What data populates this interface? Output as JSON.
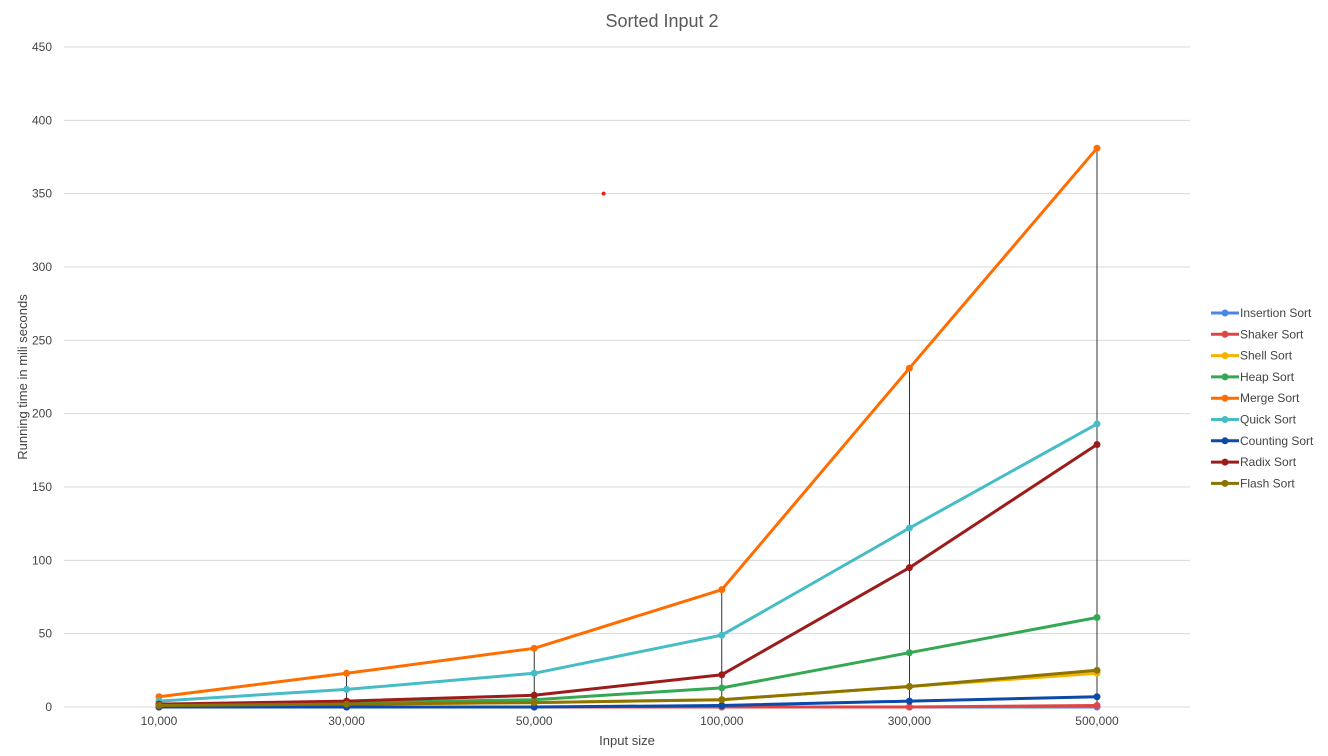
{
  "chart_data": {
    "type": "line",
    "title": "Sorted Input 2",
    "xlabel": "Input size",
    "ylabel": "Running time in mili seconds",
    "categories": [
      "10,000",
      "30,000",
      "50,000",
      "100,000",
      "300,000",
      "500,000"
    ],
    "ylim": [
      0,
      450
    ],
    "yticks": [
      0,
      50,
      100,
      150,
      200,
      250,
      300,
      350,
      400,
      450
    ],
    "grid": true,
    "legend_position": "right",
    "series": [
      {
        "name": "Insertion Sort",
        "color": "#4a86e8",
        "values": [
          0,
          0,
          0,
          0,
          0,
          0
        ]
      },
      {
        "name": "Shaker Sort",
        "color": "#e04545",
        "values": [
          0,
          0,
          0,
          0,
          0,
          1
        ]
      },
      {
        "name": "Shell Sort",
        "color": "#f4b400",
        "values": [
          1,
          2,
          3,
          5,
          14,
          23
        ]
      },
      {
        "name": "Heap Sort",
        "color": "#34a853",
        "values": [
          1,
          3,
          5,
          13,
          37,
          61
        ]
      },
      {
        "name": "Merge Sort",
        "color": "#ff6d01",
        "values": [
          7,
          23,
          40,
          80,
          231,
          381
        ]
      },
      {
        "name": "Quick Sort",
        "color": "#46bdc6",
        "values": [
          4,
          12,
          23,
          49,
          122,
          193
        ]
      },
      {
        "name": "Counting Sort",
        "color": "#0b4aa8",
        "values": [
          0,
          0,
          0,
          1,
          4,
          7
        ]
      },
      {
        "name": "Radix Sort",
        "color": "#9c1c1c",
        "values": [
          2,
          4,
          8,
          22,
          95,
          179
        ]
      },
      {
        "name": "Flash Sort",
        "color": "#8d7300",
        "values": [
          1,
          2,
          3,
          5,
          14,
          25
        ]
      }
    ],
    "stray_point": {
      "category_index": 2.37,
      "value": 350,
      "color": "#e0271b"
    }
  }
}
